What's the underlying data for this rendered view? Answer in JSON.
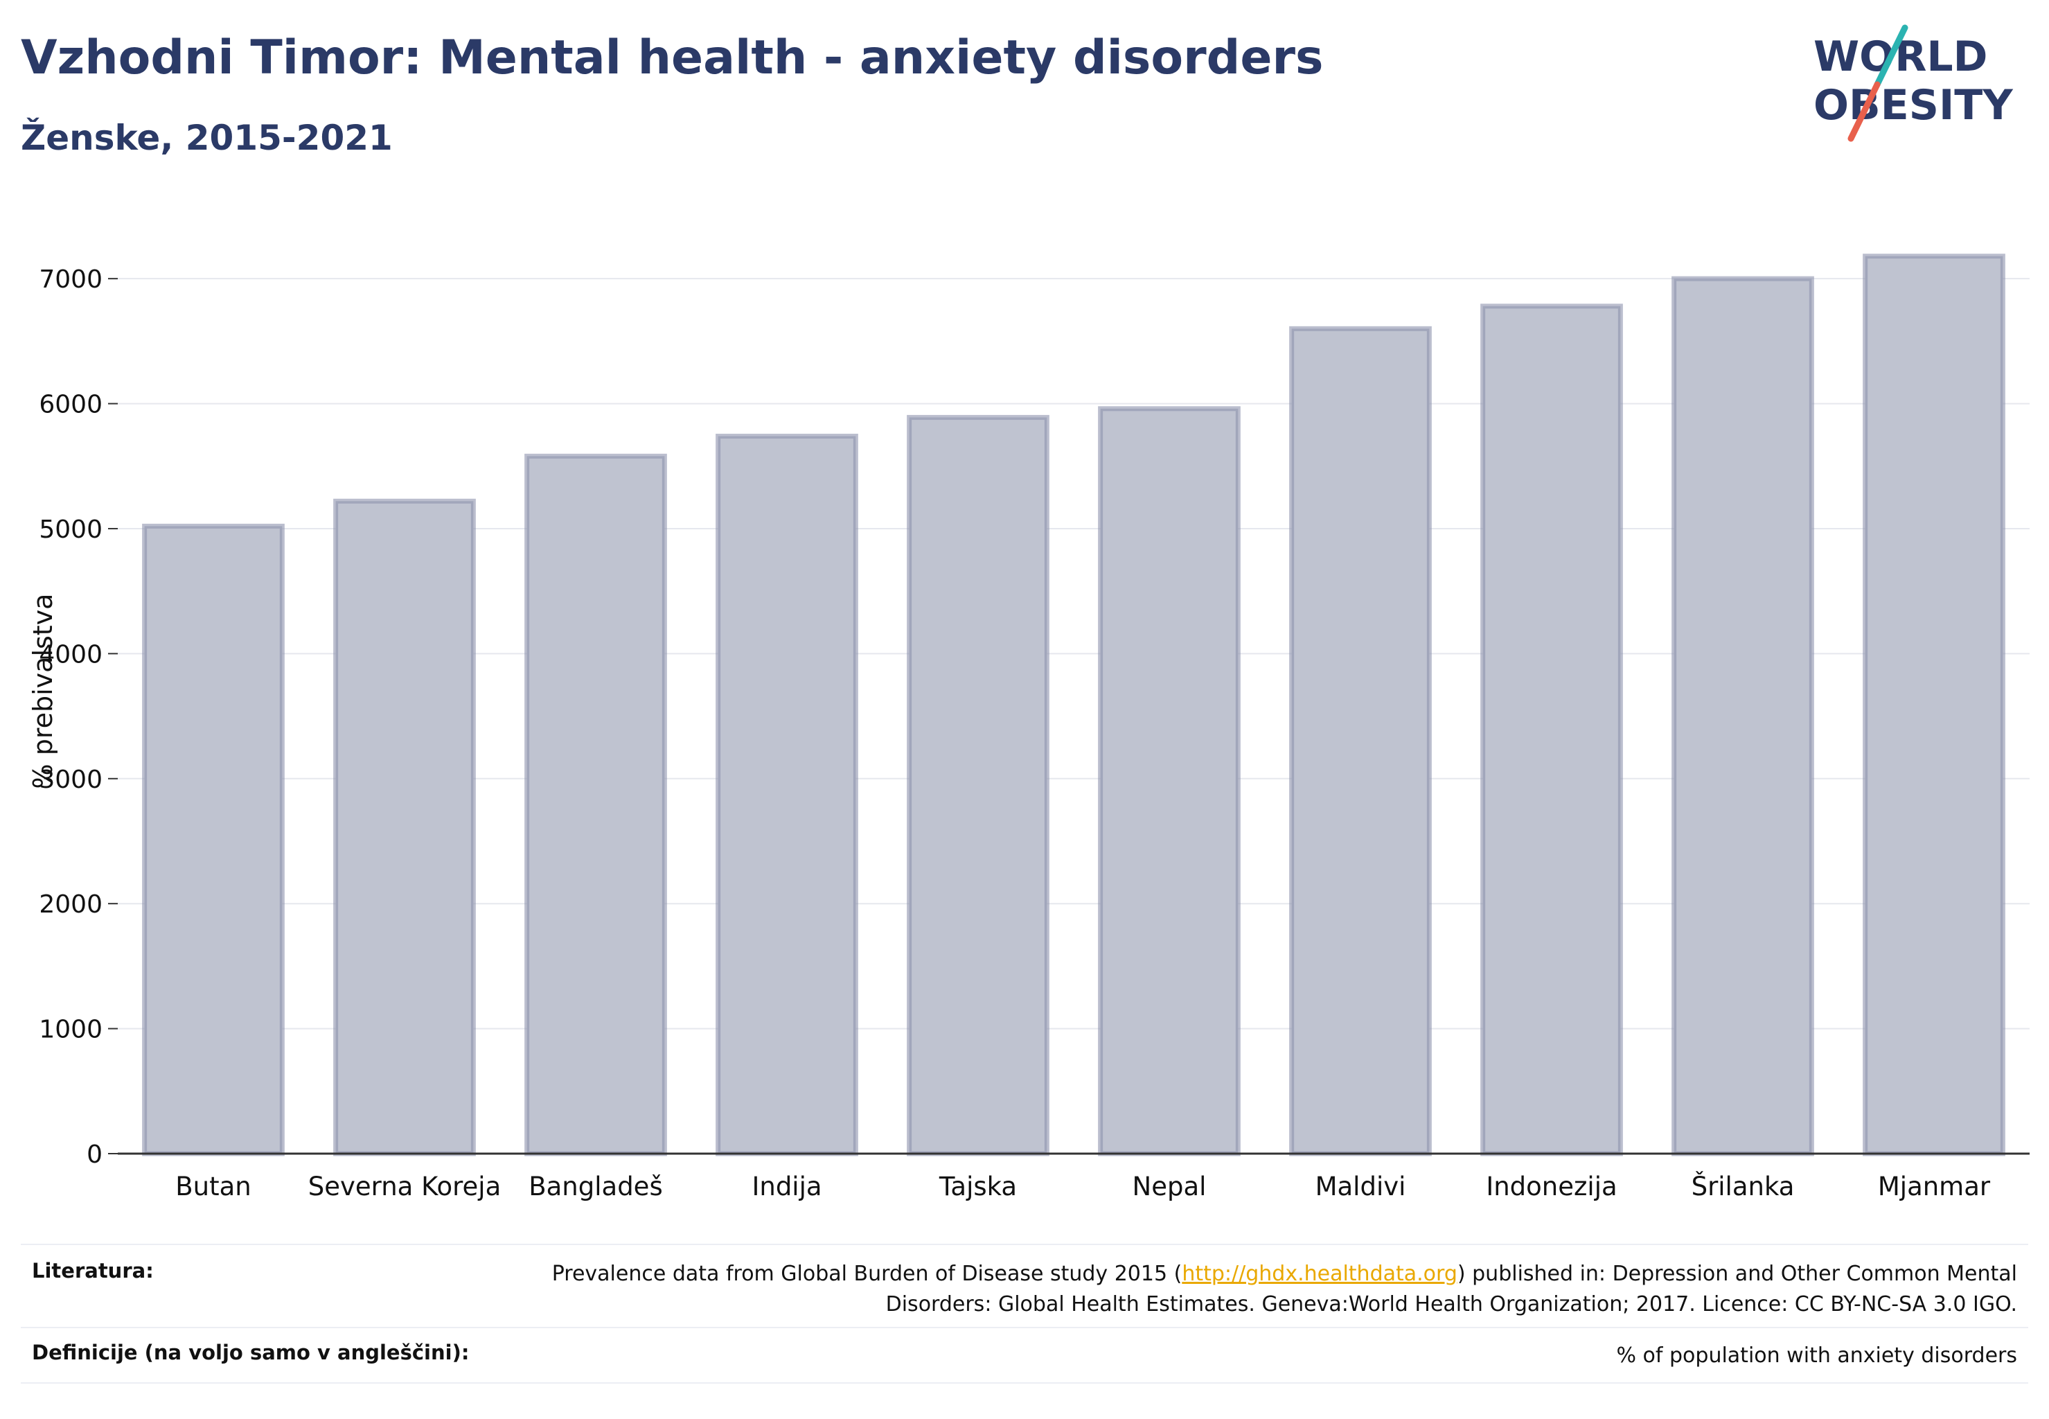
{
  "header": {
    "title": "Vzhodni Timor: Mental health - anxiety disorders",
    "subtitle": "Ženske, 2015-2021"
  },
  "logo": {
    "line1": "WORLD",
    "line2": "OBESITY",
    "accent_teal": "#2bb3b1",
    "accent_red": "#e8604c",
    "text_color": "#2b3a67"
  },
  "chart_data": {
    "type": "bar",
    "categories": [
      "Butan",
      "Severna Koreja",
      "Bangladeš",
      "Indija",
      "Tajska",
      "Nepal",
      "Maldivi",
      "Indonezija",
      "Šrilanka",
      "Mjanmar"
    ],
    "values": [
      5020,
      5220,
      5580,
      5740,
      5890,
      5960,
      6600,
      6780,
      7000,
      7180
    ],
    "ylabel": "% prebivalstva",
    "xlabel": "",
    "ylim": [
      0,
      7400
    ],
    "yticks": [
      0,
      1000,
      2000,
      3000,
      4000,
      5000,
      6000,
      7000
    ],
    "grid": true,
    "bar_fill": "#bfc3d0",
    "bar_stroke": "#8d93ad"
  },
  "footer": {
    "sources_label": "Literatura:",
    "sources_text_before": "Prevalence data from Global Burden of Disease study 2015 (",
    "sources_link": "http://ghdx.healthdata.org",
    "sources_text_after": ") published in: Depression and Other Common Mental Disorders: Global Health Estimates. Geneva:World Health Organization; 2017. Licence: CC BY-NC-SA 3.0 IGO.",
    "definitions_label": "Definicije (na voljo samo v angleščini):",
    "definitions_text": "% of population with anxiety disorders"
  }
}
